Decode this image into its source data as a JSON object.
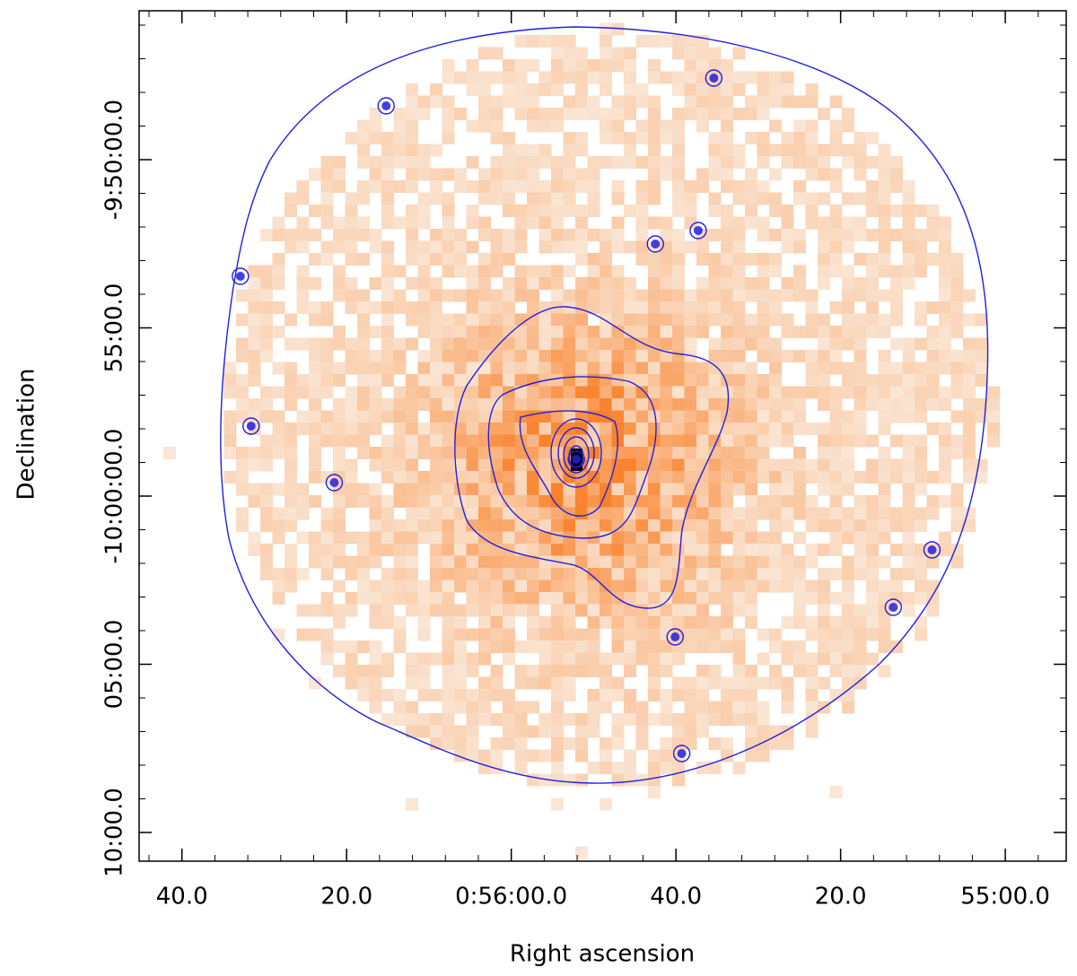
{
  "chart_data": {
    "type": "image",
    "x_label": "Right ascension",
    "y_label": "Declination",
    "xlim": [
      3405.2,
      3292.6
    ],
    "ylim": [
      -36651.2,
      -35134.4
    ],
    "xticks": [
      {
        "value": 3400,
        "label": "40.0"
      },
      {
        "value": 3380,
        "label": "20.0"
      },
      {
        "value": 3360,
        "label": "0:56:00.0"
      },
      {
        "value": 3340,
        "label": "40.0"
      },
      {
        "value": 3320,
        "label": "20.0"
      },
      {
        "value": 3300,
        "label": "55:00.0"
      }
    ],
    "yticks": [
      {
        "value": -35400,
        "label": "-9:50:00.0"
      },
      {
        "value": -35700,
        "label": "55:00.0"
      },
      {
        "value": -36000,
        "label": "-10:00:00.0"
      },
      {
        "value": -36300,
        "label": "05:00.0"
      },
      {
        "value": -36600,
        "label": "10:00.0"
      }
    ],
    "sources": {
      "color": "#2020e0",
      "x": [
        3335.4,
        3375.2,
        3337.3,
        3342.5,
        3392.9,
        3391.6,
        3381.5,
        3308.9,
        3313.6,
        3340.1,
        3339.3,
        3352.1
      ],
      "y": [
        -35254.4,
        -35304,
        -35526.4,
        -35550.4,
        -35608,
        -35875.2,
        -35976,
        -36096,
        -36198.4,
        -36251.2,
        -36459.2,
        -35934.4
      ]
    }
  }
}
